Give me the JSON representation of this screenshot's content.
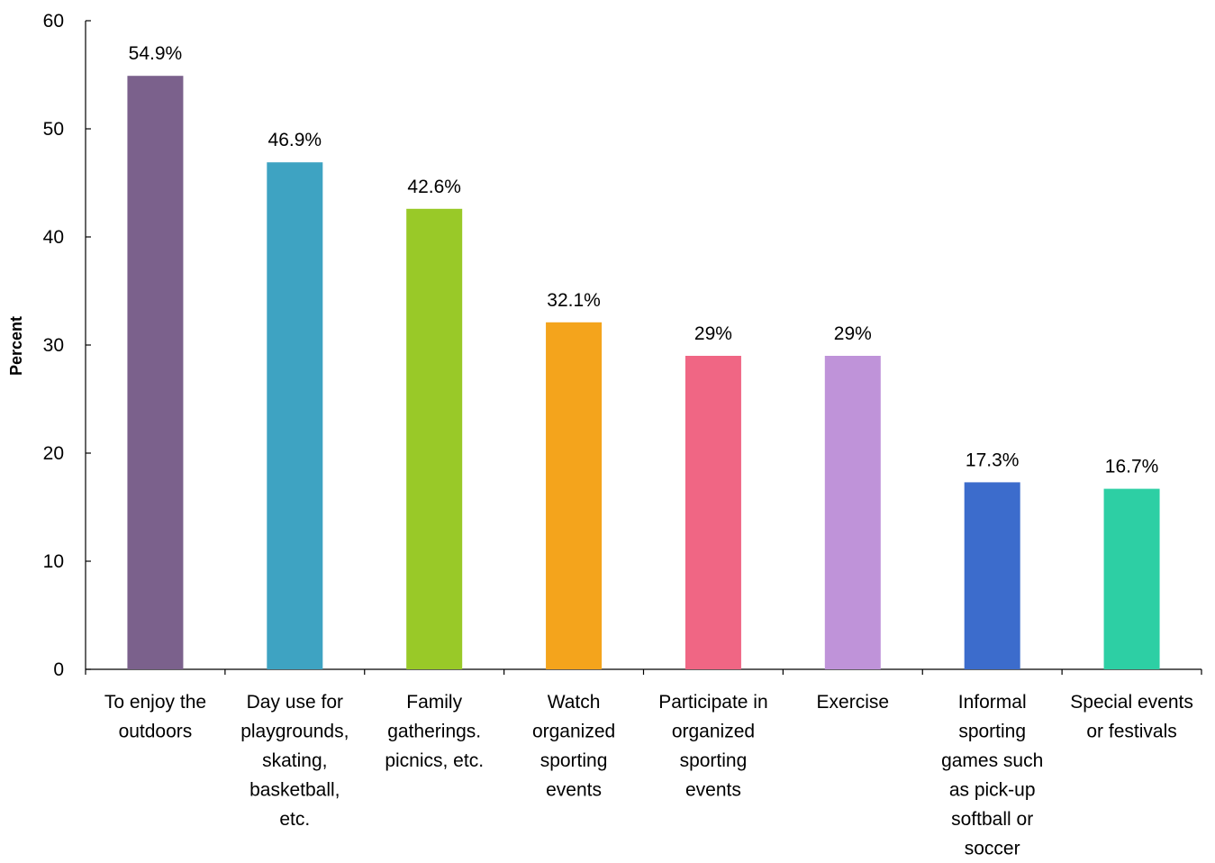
{
  "chart_data": {
    "type": "bar",
    "title": "",
    "xlabel": "",
    "ylabel": "Percent",
    "ylim": [
      0,
      60
    ],
    "yticks": [
      0,
      10,
      20,
      30,
      40,
      50,
      60
    ],
    "grid": false,
    "legend": "none",
    "categories": [
      [
        "To enjoy the",
        "outdoors"
      ],
      [
        "Day use for",
        "playgrounds,",
        "skating,",
        "basketball,",
        "etc."
      ],
      [
        "Family",
        "gatherings.",
        "picnics, etc."
      ],
      [
        "Watch",
        "organized",
        "sporting",
        "events"
      ],
      [
        "Participate in",
        "organized",
        "sporting",
        "events"
      ],
      [
        "Exercise"
      ],
      [
        "Informal",
        "sporting",
        "games such",
        "as pick-up",
        "softball or",
        "soccer"
      ],
      [
        "Special events",
        "or festivals"
      ]
    ],
    "values": [
      54.9,
      46.9,
      42.6,
      32.1,
      29,
      29,
      17.3,
      16.7
    ],
    "value_labels": [
      "54.9%",
      "46.9%",
      "42.6%",
      "32.1%",
      "29%",
      "29%",
      "17.3%",
      "16.7%"
    ],
    "colors": [
      "#7b618c",
      "#3ea3c2",
      "#99c928",
      "#f4a41c",
      "#f06684",
      "#bf93d9",
      "#3c6ccc",
      "#2dcfa4"
    ]
  }
}
